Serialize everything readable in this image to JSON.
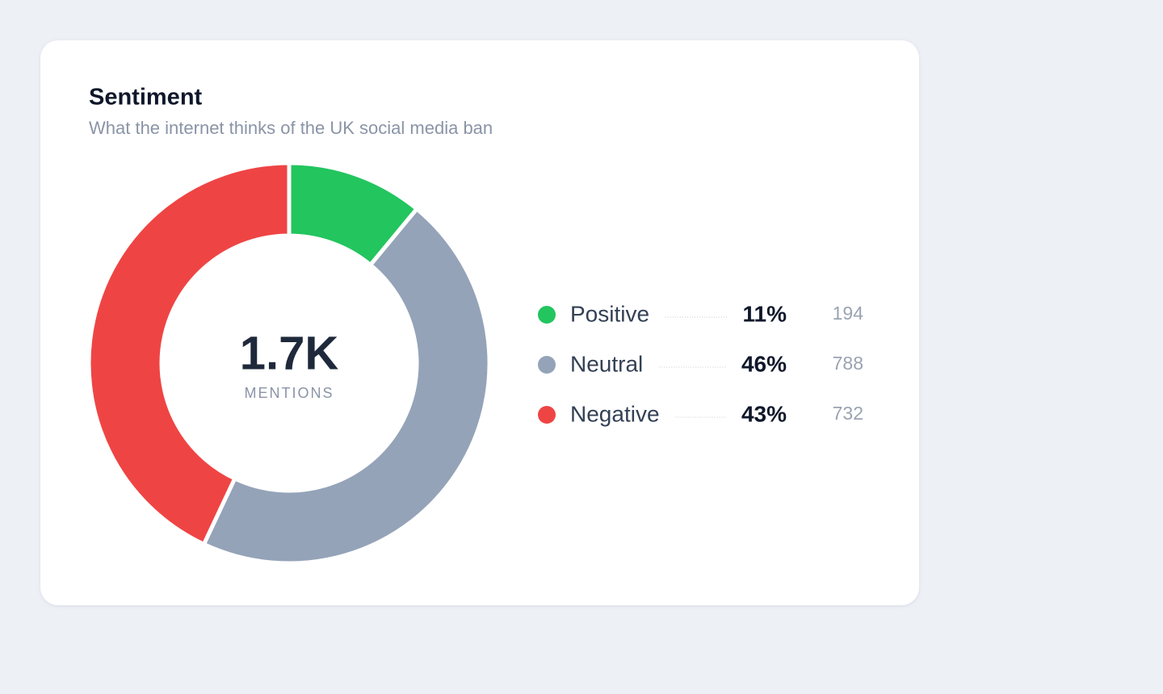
{
  "chart_data": {
    "type": "donut",
    "title": "Sentiment",
    "subtitle": "What the internet thinks of the UK social media ban",
    "center_value": "1.7K",
    "center_label": "MENTIONS",
    "categories": [
      "Positive",
      "Neutral",
      "Negative"
    ],
    "values": [
      11,
      46,
      43
    ],
    "value_labels": [
      "11%",
      "46%",
      "43%"
    ],
    "counts": [
      194,
      788,
      732
    ],
    "colors": [
      "#22c55e",
      "#94a3b8",
      "#ef4444"
    ]
  }
}
